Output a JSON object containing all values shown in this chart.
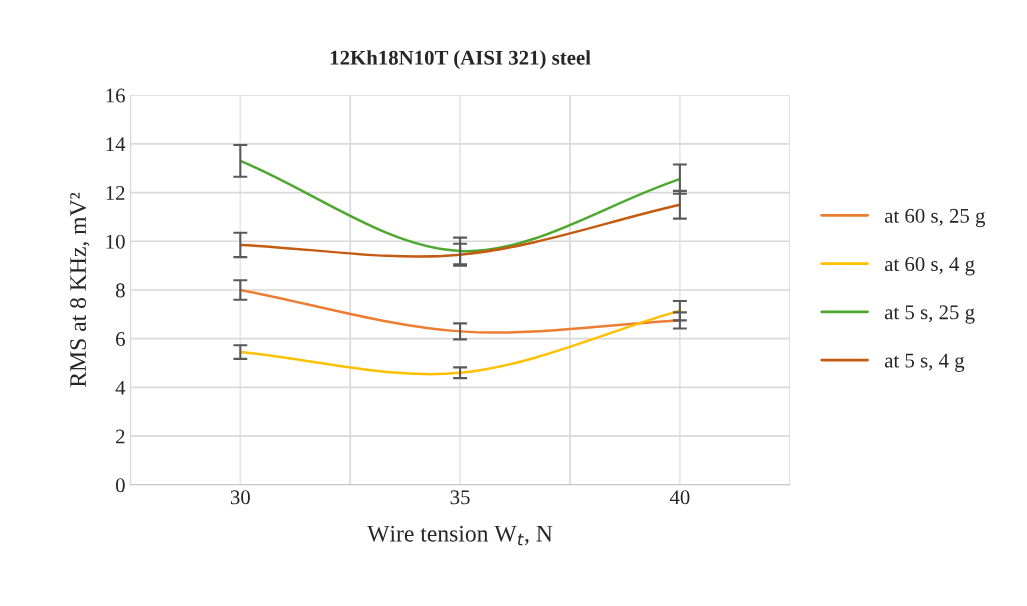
{
  "chart_data": {
    "type": "line",
    "title": "12Kh18N10T (AISI 321) steel",
    "xlabel": "Wire tension W$_{t}$, N",
    "ylabel": "RMS at 8 KHz, mV²",
    "categories": [
      "30",
      "35",
      "40"
    ],
    "series": [
      {
        "name": "at 60 s, 25 g",
        "color": "#ed7d31",
        "values": [
          8.0,
          6.3,
          6.75
        ],
        "errors": [
          0.4,
          0.33,
          0.33
        ]
      },
      {
        "name": "at 60 s, 4 g",
        "color": "#ffc000",
        "values": [
          5.45,
          4.6,
          7.15
        ],
        "errors": [
          0.28,
          0.22,
          0.4
        ]
      },
      {
        "name": "at 5 s, 25 g",
        "color": "#4ea72e",
        "values": [
          13.3,
          9.6,
          12.55
        ],
        "errors": [
          0.65,
          0.55,
          0.6
        ]
      },
      {
        "name": "at 5 s, 4 g",
        "color": "#c55a11",
        "values": [
          9.85,
          9.45,
          11.5
        ],
        "errors": [
          0.5,
          0.45,
          0.57
        ]
      }
    ],
    "ylim": [
      0,
      16
    ],
    "yticks": [
      0,
      2,
      4,
      6,
      8,
      10,
      12,
      14,
      16
    ],
    "grid": true,
    "legend": "right",
    "marker": "none",
    "line_style": "solid"
  }
}
